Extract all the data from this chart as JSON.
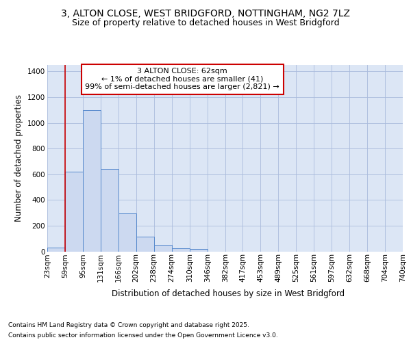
{
  "title_line1": "3, ALTON CLOSE, WEST BRIDGFORD, NOTTINGHAM, NG2 7LZ",
  "title_line2": "Size of property relative to detached houses in West Bridgford",
  "xlabel": "Distribution of detached houses by size in West Bridgford",
  "ylabel": "Number of detached properties",
  "bin_edges": [
    23,
    59,
    95,
    131,
    166,
    202,
    238,
    274,
    310,
    346,
    382,
    417,
    453,
    489,
    525,
    561,
    597,
    632,
    668,
    704,
    740
  ],
  "bar_heights": [
    30,
    620,
    1100,
    640,
    295,
    115,
    50,
    25,
    20,
    0,
    0,
    0,
    0,
    0,
    0,
    0,
    0,
    0,
    0,
    0
  ],
  "bar_color": "#ccd9f0",
  "bar_edge_color": "#5588cc",
  "grid_color": "#aabbdd",
  "bg_color": "#dce6f5",
  "property_line_x": 59,
  "property_line_color": "#cc0000",
  "annotation_text": "3 ALTON CLOSE: 62sqm\n← 1% of detached houses are smaller (41)\n99% of semi-detached houses are larger (2,821) →",
  "annotation_box_color": "#cc0000",
  "ylim": [
    0,
    1450
  ],
  "yticks": [
    0,
    200,
    400,
    600,
    800,
    1000,
    1200,
    1400
  ],
  "footer_line1": "Contains HM Land Registry data © Crown copyright and database right 2025.",
  "footer_line2": "Contains public sector information licensed under the Open Government Licence v3.0.",
  "title_fontsize": 10,
  "subtitle_fontsize": 9,
  "axis_label_fontsize": 8.5,
  "tick_fontsize": 7.5,
  "annotation_fontsize": 8,
  "footer_fontsize": 6.5
}
